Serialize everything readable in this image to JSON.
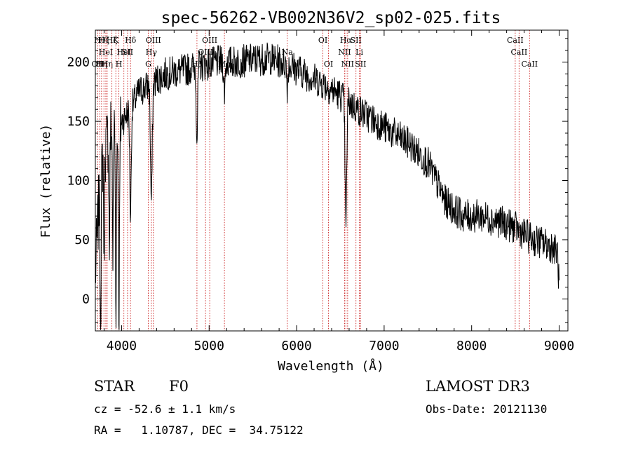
{
  "chart_data": {
    "type": "line",
    "title": "spec-56262-VB002N36V2_sp02-025.fits",
    "xlabel": "Wavelength (Å)",
    "ylabel": "Flux (relative)",
    "xlim": [
      3700,
      9100
    ],
    "ylim": [
      -27,
      227
    ],
    "x_ticks": [
      4000,
      5000,
      6000,
      7000,
      8000,
      9000
    ],
    "y_ticks": [
      0,
      50,
      100,
      150,
      200
    ],
    "series": [
      {
        "name": "flux",
        "color": "#000000",
        "continuum": {
          "wavelength": [
            3700,
            3760,
            3820,
            3880,
            3950,
            4000,
            4100,
            4200,
            4300,
            4400,
            4500,
            4700,
            4900,
            5100,
            5300,
            5500,
            5700,
            5900,
            6100,
            6300,
            6500,
            6700,
            6900,
            7100,
            7300,
            7500,
            7700,
            7900,
            8100,
            8300,
            8500,
            8700,
            8900,
            8980,
            9000
          ],
          "flux": [
            20,
            110,
            130,
            145,
            150,
            150,
            160,
            175,
            180,
            185,
            190,
            193,
            197,
            200,
            200,
            202,
            203,
            198,
            190,
            182,
            172,
            160,
            150,
            140,
            130,
            115,
            82,
            70,
            70,
            66,
            60,
            50,
            45,
            40,
            10
          ]
        },
        "absorption_lines": [
          {
            "wavelength": 3760,
            "depth": 130,
            "width": 6
          },
          {
            "wavelength": 3800,
            "depth": 90,
            "width": 5
          },
          {
            "wavelength": 3860,
            "depth": 100,
            "width": 5
          },
          {
            "wavelength": 3900,
            "depth": 110,
            "width": 5
          },
          {
            "wavelength": 3935,
            "depth": 150,
            "width": 6
          },
          {
            "wavelength": 3970,
            "depth": 160,
            "width": 7
          },
          {
            "wavelength": 4102,
            "depth": 90,
            "width": 8
          },
          {
            "wavelength": 4340,
            "depth": 100,
            "width": 10
          },
          {
            "wavelength": 4861,
            "depth": 60,
            "width": 8
          },
          {
            "wavelength": 5175,
            "depth": 25,
            "width": 8
          },
          {
            "wavelength": 5893,
            "depth": 20,
            "width": 6
          },
          {
            "wavelength": 6563,
            "depth": 110,
            "width": 9
          }
        ],
        "noise_amplitude": 14,
        "seed": 7
      }
    ],
    "line_markers": [
      {
        "wavelength": 3727,
        "label": "OII",
        "row": 2
      },
      {
        "wavelength": 3750,
        "label": "Hθ",
        "row": 0
      },
      {
        "wavelength": 3771,
        "label": "Hη",
        "row": 2
      },
      {
        "wavelength": 3798,
        "label": "Hζ",
        "row": 0
      },
      {
        "wavelength": 3820,
        "label": "HeI",
        "row": 1
      },
      {
        "wavelength": 3835,
        "label": "Hη",
        "row": 2
      },
      {
        "wavelength": 3889,
        "label": "Hζ",
        "row": 0
      },
      {
        "wavelength": 3934,
        "label": "K",
        "row": 0
      },
      {
        "wavelength": 3969,
        "label": "H",
        "row": 2
      },
      {
        "wavelength": 4026,
        "label": "HeI",
        "row": 1
      },
      {
        "wavelength": 4068,
        "label": "SII",
        "row": 1
      },
      {
        "wavelength": 4102,
        "label": "Hδ",
        "row": 0
      },
      {
        "wavelength": 4305,
        "label": "G",
        "row": 2
      },
      {
        "wavelength": 4340,
        "label": "Hγ",
        "row": 1
      },
      {
        "wavelength": 4363,
        "label": "OIII",
        "row": 0
      },
      {
        "wavelength": 4861,
        "label": "Hβ",
        "row": 2
      },
      {
        "wavelength": 4959,
        "label": "OIII",
        "row": 1
      },
      {
        "wavelength": 5007,
        "label": "OIII",
        "row": 0
      },
      {
        "wavelength": 5175,
        "label": "Mg",
        "row": 2
      },
      {
        "wavelength": 5893,
        "label": "Na",
        "row": 1
      },
      {
        "wavelength": 6300,
        "label": "OI",
        "row": 0
      },
      {
        "wavelength": 6364,
        "label": "OI",
        "row": 2
      },
      {
        "wavelength": 6548,
        "label": "NII",
        "row": 1
      },
      {
        "wavelength": 6563,
        "label": "Hα",
        "row": 0
      },
      {
        "wavelength": 6583,
        "label": "NII",
        "row": 2
      },
      {
        "wavelength": 6678,
        "label": "SII",
        "row": 0
      },
      {
        "wavelength": 6717,
        "label": "Li",
        "row": 1
      },
      {
        "wavelength": 6731,
        "label": "SII",
        "row": 2
      },
      {
        "wavelength": 8498,
        "label": "CaII",
        "row": 0
      },
      {
        "wavelength": 8542,
        "label": "CaII",
        "row": 1
      },
      {
        "wavelength": 8662,
        "label": "CaII",
        "row": 2
      }
    ]
  },
  "info": {
    "object_class": "STAR",
    "subclass": "F0",
    "survey": "LAMOST DR3",
    "redshift": "cz = -52.6 ± 1.1 km/s",
    "obs_date": "Obs-Date: 20121130",
    "coords": "RA =   1.10787, DEC =  34.75122"
  }
}
